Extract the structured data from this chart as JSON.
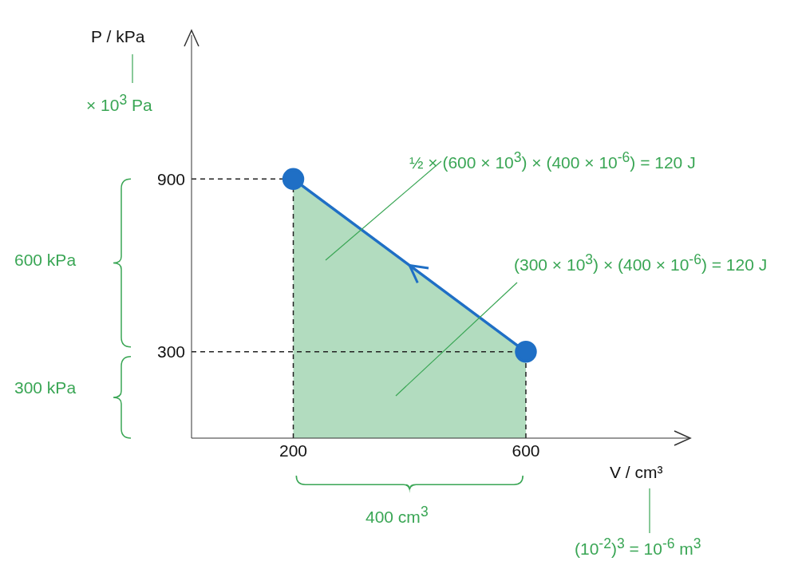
{
  "chart_data": {
    "type": "line",
    "xlabel": "V / cm³",
    "ylabel": "P / kPa",
    "x": [
      200,
      600
    ],
    "series": [
      {
        "type": "area",
        "color": "#b2dcbf",
        "values": [
          900,
          300
        ]
      },
      {
        "color": "#1f6fc5",
        "values": [
          900,
          300
        ],
        "marker": "circle"
      }
    ],
    "xlim": [
      25,
      880
    ],
    "ylim": [
      0,
      1400
    ],
    "xticks": [
      200,
      600
    ],
    "yticks": [
      300,
      900
    ],
    "grid": false,
    "ref_lines": [
      {
        "axis": "y",
        "value": 900,
        "line_style": "dashed",
        "color": "#222222"
      },
      {
        "axis": "y",
        "value": 300,
        "line_style": "dashed",
        "color": "#222222"
      },
      {
        "axis": "x",
        "value": 200,
        "line_style": "dashed",
        "color": "#222222"
      },
      {
        "axis": "x",
        "value": 600,
        "line_style": "dashed",
        "color": "#222222"
      }
    ],
    "annotations": [
      "× 10$^{3}$ Pa",
      "600 kPa",
      "300 kPa",
      "½ × (600 × 10$^{3}$) × (400 × 10$^{-6}$) = 120 J",
      "(300 × 10$^{3}$) × (400 × 10$^{-6}$) = 120 J",
      "400 cm$^{3}$",
      "(10$^{-2}$)$^{3}$ = 10$^{-6}$ m$^{3}$"
    ]
  }
}
